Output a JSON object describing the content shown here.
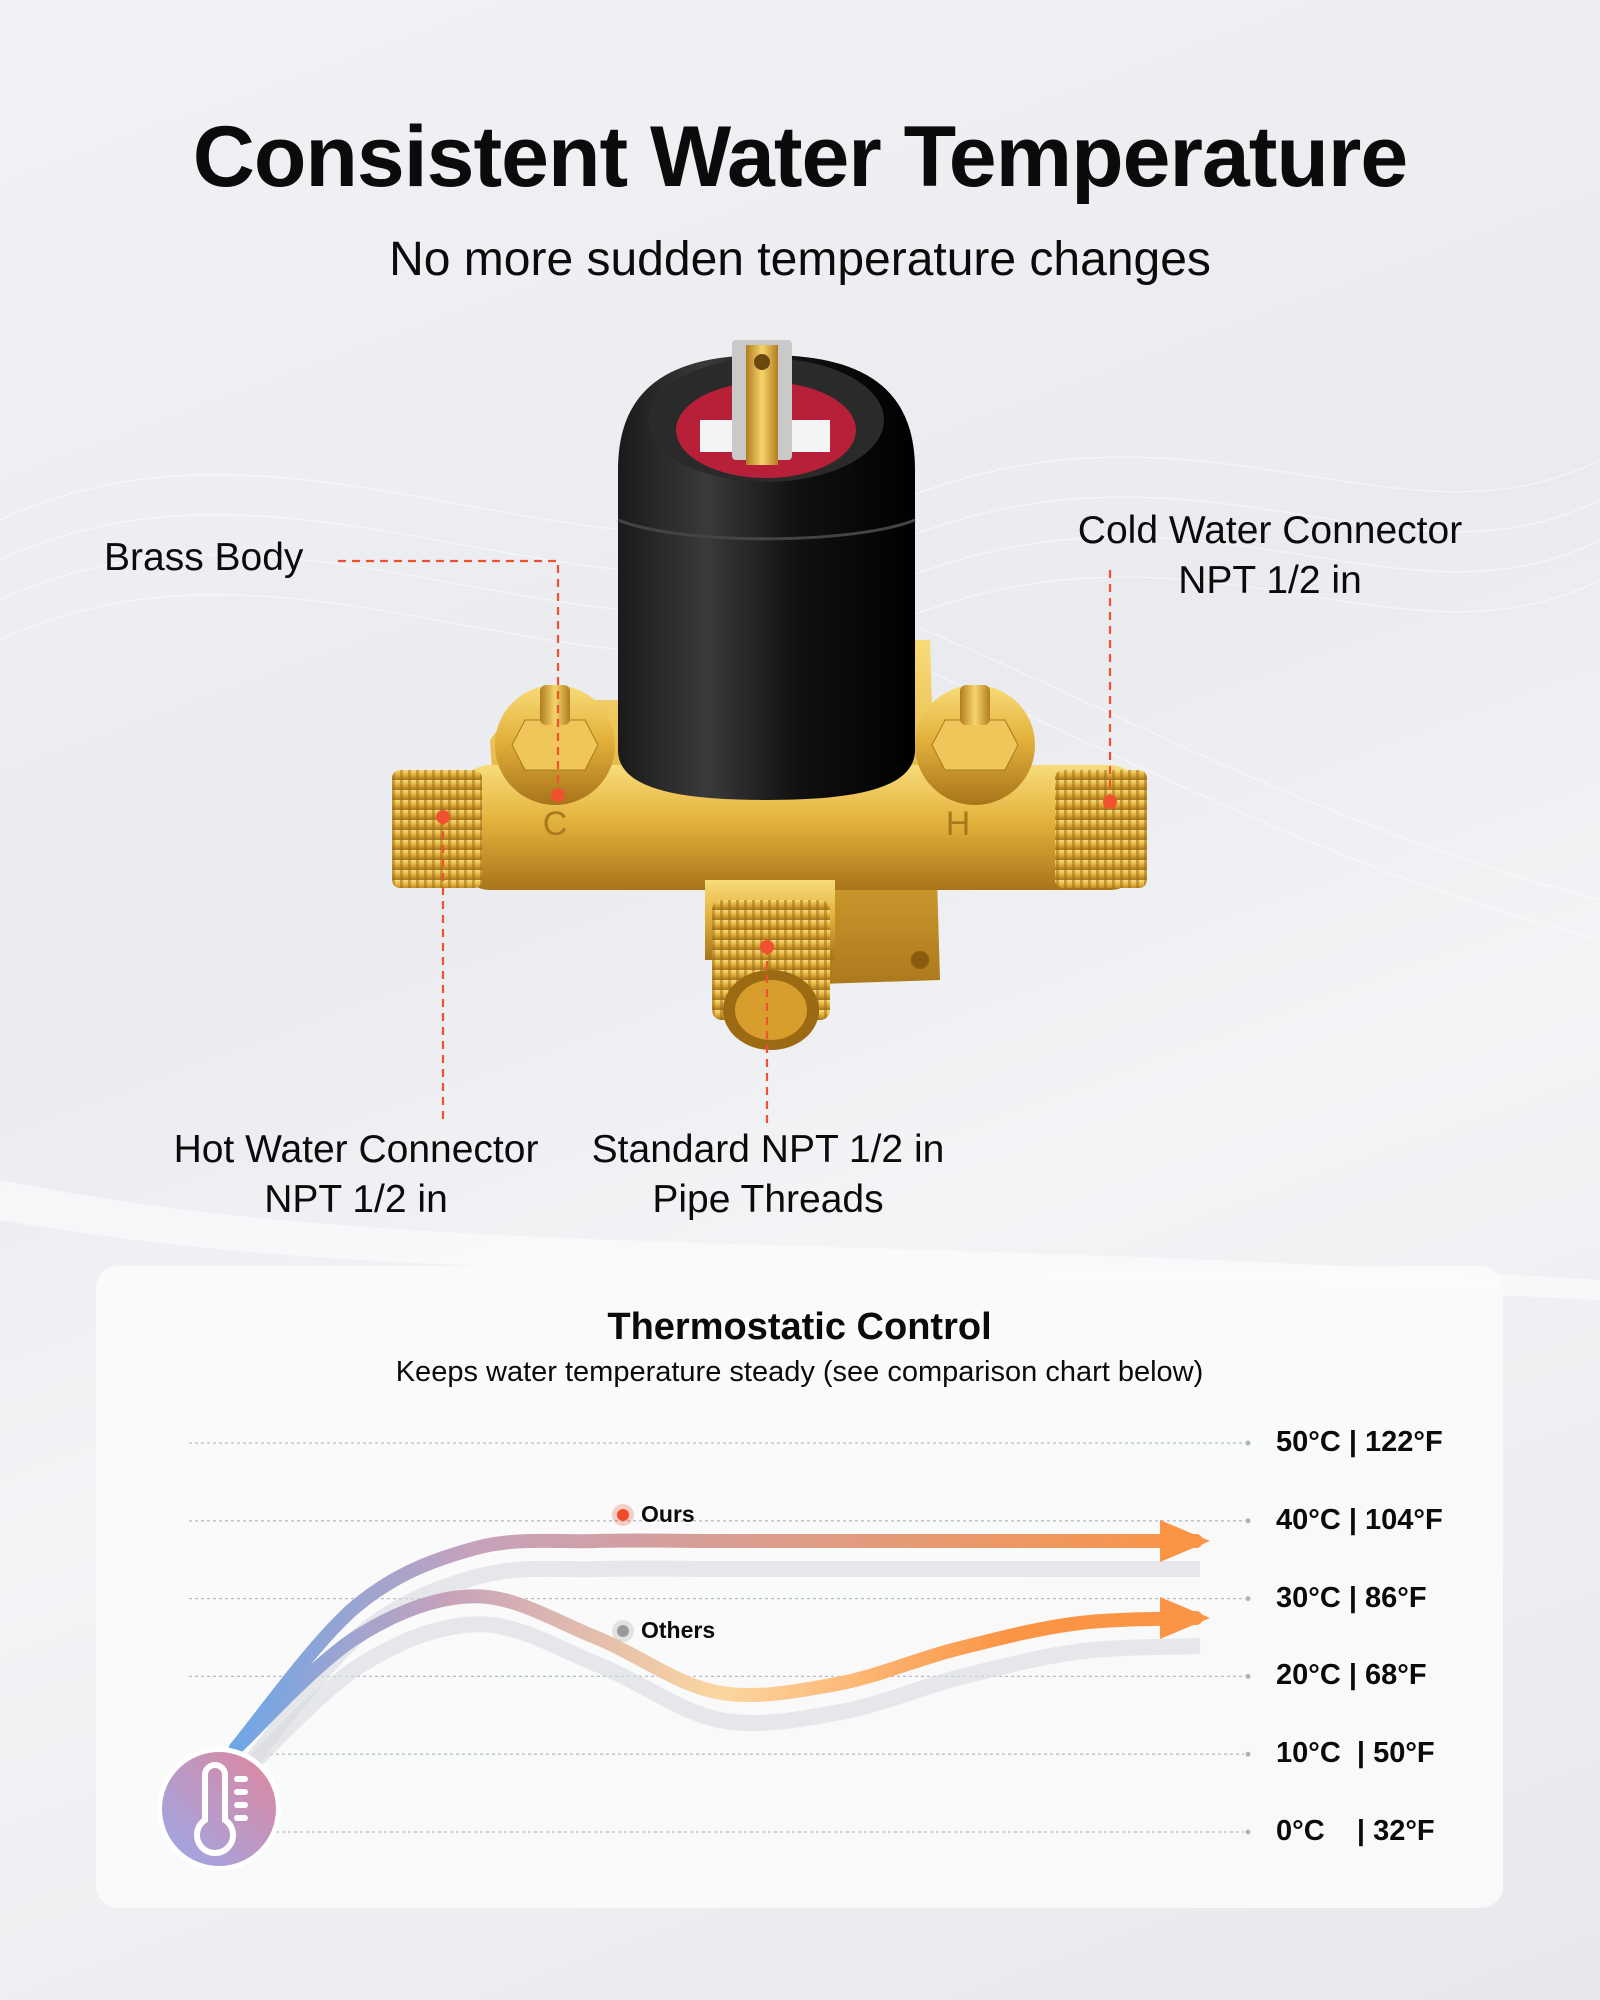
{
  "header": {
    "title": "Consistent Water Temperature",
    "subtitle": "No more sudden temperature changes"
  },
  "callouts": {
    "brass_body": "Brass Body",
    "cold_line1": "Cold Water Connector",
    "cold_line2": "NPT 1/2 in",
    "hot_line1": "Hot Water Connector",
    "hot_line2": "NPT 1/2 in",
    "thread_line1": "Standard NPT 1/2 in",
    "thread_line2": "Pipe Threads"
  },
  "colors": {
    "callout_line": "#f0522f",
    "ours_dot": "#f04a2a",
    "others_dot": "#9a9a9a",
    "curve_start": "#6fa6e6",
    "curve_mid": "#c7a2bb",
    "curve_trough": "#fcd6a0",
    "curve_end": "#fb9444",
    "brass": "#e3b23c",
    "cartridge": "#111111"
  },
  "card": {
    "title": "Thermostatic Control",
    "subtitle": "Keeps water temperature steady (see comparison chart below)",
    "icon": "thermometer-icon"
  },
  "chart_data": {
    "type": "line",
    "title": "",
    "ylim": [
      0,
      50
    ],
    "yticks": [
      50,
      40,
      30,
      20,
      10,
      0
    ],
    "ytick_labels": [
      "50°C | 122°F",
      "40°C | 104°F",
      "30°C | 86°F",
      "20°C | 68°F",
      "10°C  | 50°F",
      "0°C    | 32°F"
    ],
    "grid": true,
    "legend_placement": "inline",
    "series": [
      {
        "name": "Ours",
        "values": [
          6,
          29,
          36.5,
          37.4,
          37.4,
          37.4,
          37.4,
          37.4,
          37.4
        ]
      },
      {
        "name": "Others",
        "values": [
          6,
          25,
          30.3,
          25,
          18,
          19,
          23.5,
          26.8,
          27.5
        ]
      }
    ]
  }
}
